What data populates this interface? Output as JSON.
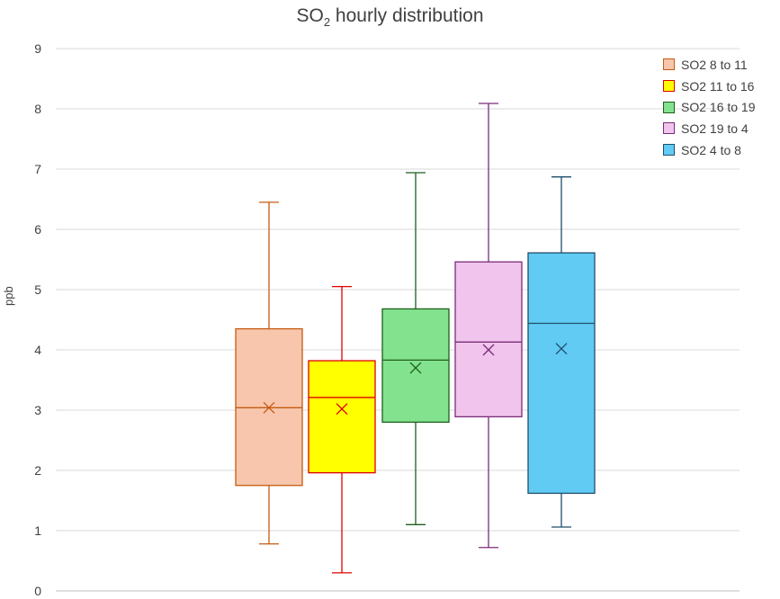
{
  "chart_data": {
    "type": "box",
    "title_main": "SO",
    "title_sub": "2",
    "title_rest": " hourly distribution",
    "ylabel": "ppb",
    "ylim": [
      0,
      9
    ],
    "yticks": [
      "0",
      "1",
      "2",
      "3",
      "4",
      "5",
      "6",
      "7",
      "8",
      "9"
    ],
    "grid": true,
    "legend_position": "top-right",
    "series": [
      {
        "name": "SO2 8 to 11",
        "min": 0.78,
        "q1": 1.75,
        "median": 3.04,
        "q3": 4.35,
        "max": 6.45,
        "mean": 3.04,
        "fill": "#F7C6AC",
        "stroke": "#C55A11"
      },
      {
        "name": "SO2 11 to 16",
        "min": 0.3,
        "q1": 1.96,
        "median": 3.21,
        "q3": 3.82,
        "max": 5.05,
        "mean": 3.02,
        "fill": "#FFFF00",
        "stroke": "#E00000"
      },
      {
        "name": "SO2 16 to 19",
        "min": 1.1,
        "q1": 2.8,
        "median": 3.83,
        "q3": 4.68,
        "max": 6.94,
        "mean": 3.7,
        "fill": "#83E28E",
        "stroke": "#1E5E1E"
      },
      {
        "name": "SO2 19 to 4",
        "min": 0.72,
        "q1": 2.89,
        "median": 4.13,
        "q3": 5.46,
        "max": 8.09,
        "mean": 4.0,
        "fill": "#F0C4EC",
        "stroke": "#7A2C7A"
      },
      {
        "name": "SO2 4 to 8",
        "min": 1.06,
        "q1": 1.62,
        "median": 4.44,
        "q3": 5.61,
        "max": 6.87,
        "mean": 4.02,
        "fill": "#61CBF3",
        "stroke": "#1F4E6B"
      }
    ]
  }
}
